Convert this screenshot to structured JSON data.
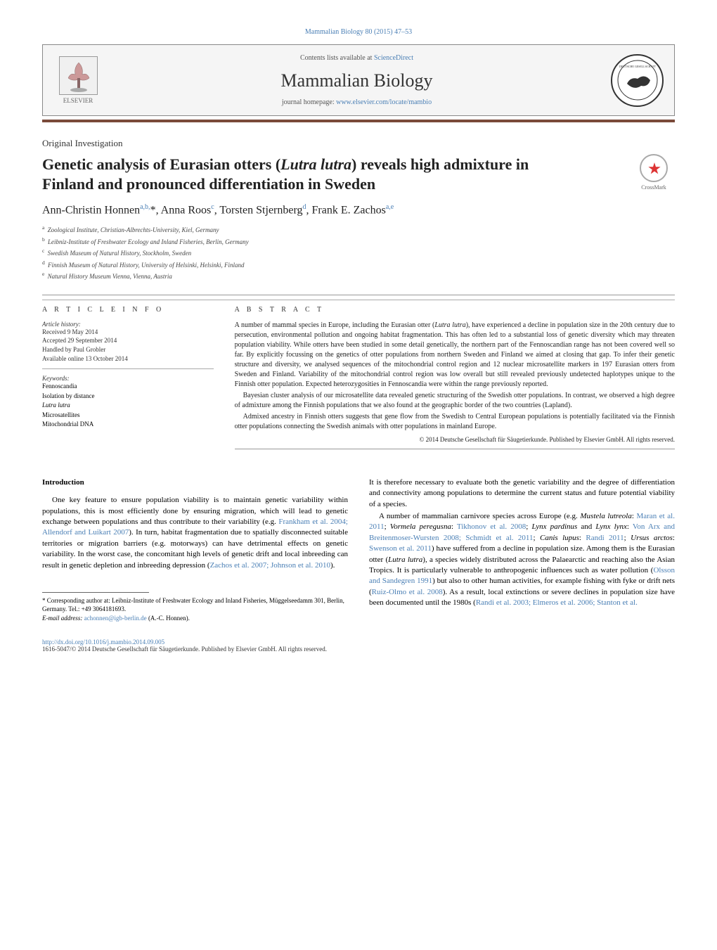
{
  "journal_ref": "Mammalian Biology 80 (2015) 47–53",
  "contents_text": "Contents lists available at ",
  "contents_link": "ScienceDirect",
  "journal_name": "Mammalian Biology",
  "homepage_label": "journal homepage: ",
  "homepage_url": "www.elsevier.com/locate/mambio",
  "elsevier_label": "ELSEVIER",
  "crossmark_label": "CrossMark",
  "article_type": "Original Investigation",
  "title": "Genetic analysis of Eurasian otters (Lutra lutra) reveals high admixture in Finland and pronounced differentiation in Sweden",
  "authors_html": "Ann-Christin Honnen<sup>a,b,</sup>*, Anna Roos<sup>c</sup>, Torsten Stjernberg<sup>d</sup>, Frank E. Zachos<sup>a,e</sup>",
  "affiliations": [
    {
      "sup": "a",
      "text": "Zoological Institute, Christian-Albrechts-University, Kiel, Germany"
    },
    {
      "sup": "b",
      "text": "Leibniz-Institute of Freshwater Ecology and Inland Fisheries, Berlin, Germany"
    },
    {
      "sup": "c",
      "text": "Swedish Museum of Natural History, Stockholm, Sweden"
    },
    {
      "sup": "d",
      "text": "Finnish Museum of Natural History, University of Helsinki, Helsinki, Finland"
    },
    {
      "sup": "e",
      "text": "Natural History Museum Vienna, Vienna, Austria"
    }
  ],
  "article_info_heading": "a r t i c l e   i n f o",
  "history_label": "Article history:",
  "history": [
    "Received 9 May 2014",
    "Accepted 29 September 2014",
    "Handled by Paul Grobler",
    "Available online 13 October 2014"
  ],
  "keywords_label": "Keywords:",
  "keywords": [
    {
      "text": "Fennoscandia",
      "italic": false
    },
    {
      "text": "Isolation by distance",
      "italic": false
    },
    {
      "text": "Lutra lutra",
      "italic": true
    },
    {
      "text": "Microsatellites",
      "italic": false
    },
    {
      "text": "Mitochondrial DNA",
      "italic": false
    }
  ],
  "abstract_heading": "a b s t r a c t",
  "abstract_paragraphs": [
    "A number of mammal species in Europe, including the Eurasian otter (Lutra lutra), have experienced a decline in population size in the 20th century due to persecution, environmental pollution and ongoing habitat fragmentation. This has often led to a substantial loss of genetic diversity which may threaten population viability. While otters have been studied in some detail genetically, the northern part of the Fennoscandian range has not been covered well so far. By explicitly focussing on the genetics of otter populations from northern Sweden and Finland we aimed at closing that gap. To infer their genetic structure and diversity, we analysed sequences of the mitochondrial control region and 12 nuclear microsatellite markers in 197 Eurasian otters from Sweden and Finland. Variability of the mitochondrial control region was low overall but still revealed previously undetected haplotypes unique to the Finnish otter population. Expected heterozygosities in Fennoscandia were within the range previously reported.",
    "Bayesian cluster analysis of our microsatellite data revealed genetic structuring of the Swedish otter populations. In contrast, we observed a high degree of admixture among the Finnish populations that we also found at the geographic border of the two countries (Lapland).",
    "Admixed ancestry in Finnish otters suggests that gene flow from the Swedish to Central European populations is potentially facilitated via the Finnish otter populations connecting the Swedish animals with otter populations in mainland Europe."
  ],
  "abstract_copyright": "© 2014 Deutsche Gesellschaft für Säugetierkunde. Published by Elsevier GmbH. All rights reserved.",
  "intro_heading": "Introduction",
  "intro_col1_p1_pre": "One key feature to ensure population viability is to maintain genetic variability within populations, this is most efficiently done by ensuring migration, which will lead to genetic exchange between populations and thus contribute to their variability (e.g. ",
  "intro_col1_link1": "Frankham et al. 2004; Allendorf and Luikart 2007",
  "intro_col1_p1_mid": "). In turn, habitat fragmentation due to spatially disconnected suitable territories or migration barriers (e.g. motorways) can have detrimental effects on genetic variability. In the worst case, the concomitant high levels of genetic drift and local inbreeding can result in genetic depletion and inbreeding depression (",
  "intro_col1_link2": "Zachos et al. 2007; Johnson et al. 2010",
  "intro_col1_p1_end": ").",
  "intro_col2_p1": "It is therefore necessary to evaluate both the genetic variability and the degree of differentiation and connectivity among populations to determine the current status and future potential viability of a species.",
  "intro_col2_p2_pre": "A number of mammalian carnivore species across Europe (e.g. ",
  "intro_col2_sp1_i": "Mustela lutreola",
  "intro_col2_sp1_l": "Maran et al. 2011",
  "intro_col2_sp2_i": "Vormela peregusna",
  "intro_col2_sp2_l": "Tikhonov et al. 2008",
  "intro_col2_sp3_i": "Lynx pardinus",
  "intro_col2_sp3b_i": "Lynx lynx",
  "intro_col2_sp3_l": "Von Arx and Breitenmoser-Wursten 2008; Schmidt et al. 2011",
  "intro_col2_sp4_i": "Canis lupus",
  "intro_col2_sp4_l": "Randi 2011",
  "intro_col2_sp5_i": "Ursus arctos",
  "intro_col2_sp5_l": "Swenson et al. 2011",
  "intro_col2_p2_mid": ") have suffered from a decline in population size. Among them is the Eurasian otter (",
  "intro_col2_otter_i": "Lutra lutra",
  "intro_col2_p2_mid2": "), a species widely distributed across the Palaearctic and reaching also the Asian Tropics. It is particularly vulnerable to anthropogenic influences such as water pollution (",
  "intro_col2_link_olsson": "Olsson and Sandegren 1991",
  "intro_col2_p2_mid3": ") but also to other human activities, for example fishing with fyke or drift nets (",
  "intro_col2_link_ruiz": "Ruiz-Olmo et al. 2008",
  "intro_col2_p2_mid4": "). As a result, local extinctions or severe declines in population size have been documented until the 1980s (",
  "intro_col2_link_randi": "Randi et al. 2003; Elmeros et al. 2006; Stanton et al.",
  "corresponding_label": "* Corresponding author at: Leibniz-Institute of Freshwater Ecology and Inland Fisheries, Müggelseedamm 301, Berlin, Germany. Tel.: +49 3064181693.",
  "email_label": "E-mail address:",
  "email_value": "achonnen@igb-berlin.de",
  "email_person": "(A.-C. Honnen).",
  "doi_url": "http://dx.doi.org/10.1016/j.mambio.2014.09.005",
  "footer_copyright": "1616-5047/© 2014 Deutsche Gesellschaft für Säugetierkunde. Published by Elsevier GmbH. All rights reserved.",
  "colors": {
    "link": "#4a7fb5",
    "divider_dark": "#7a4a3a",
    "text": "#222222",
    "border": "#999999"
  }
}
